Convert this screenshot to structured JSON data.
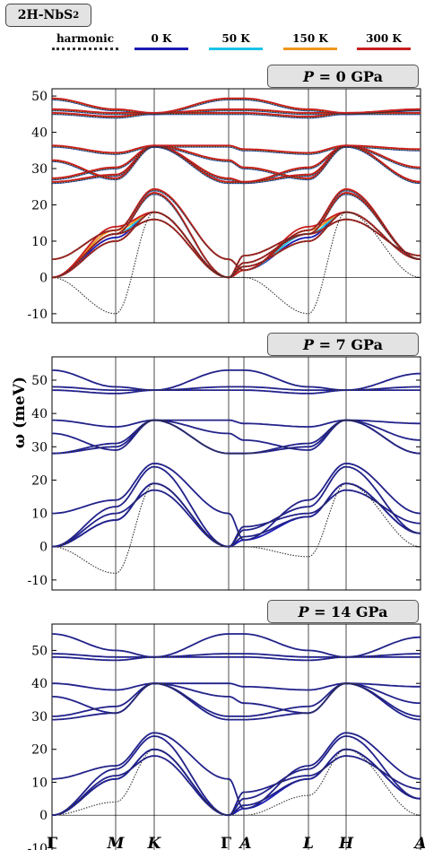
{
  "title": {
    "main": "2H-NbS",
    "sub": "2"
  },
  "legend": [
    {
      "label": "harmonic",
      "color": "#333333",
      "dashed": true
    },
    {
      "label": "0 K",
      "color": "#1a1ab4",
      "dashed": false
    },
    {
      "label": "50 K",
      "color": "#19c3e6",
      "dashed": false
    },
    {
      "label": "150 K",
      "color": "#f0961e",
      "dashed": false
    },
    {
      "label": "300 K",
      "color": "#c81e1e",
      "dashed": false
    }
  ],
  "ylabel": "ω (meV)",
  "xticks": [
    "Γ",
    "M",
    "K",
    "Γ",
    "A",
    "L",
    "H",
    "A"
  ],
  "chart_data": [
    {
      "type": "line",
      "pressure_label": "P = 0 GPa",
      "pressure_var": "P",
      "pressure_val": "= 0 GPa",
      "ylim": [
        -12.5,
        52
      ],
      "yticks": [
        -10,
        0,
        10,
        20,
        30,
        40,
        50
      ],
      "x_points": [
        "Γ",
        "M",
        "K",
        "Γ",
        "A",
        "L",
        "H",
        "A"
      ],
      "series": [
        {
          "name": "harmonic",
          "values": [
            0,
            -10,
            18,
            0,
            0,
            -10,
            18,
            0
          ]
        },
        {
          "name": "0 K",
          "values": [
            0,
            11,
            18,
            0,
            2,
            11,
            18,
            5
          ]
        },
        {
          "name": "50 K",
          "values": [
            0,
            12,
            18,
            0,
            2,
            12,
            18,
            5
          ]
        },
        {
          "name": "150 K",
          "values": [
            0,
            13,
            18,
            0,
            2,
            13,
            18,
            5
          ]
        },
        {
          "name": "300 K",
          "values": [
            0,
            14,
            18,
            0,
            2,
            14,
            18,
            5
          ]
        }
      ]
    },
    {
      "type": "line",
      "pressure_label": "P = 7 GPa",
      "pressure_var": "P",
      "pressure_val": "= 7 GPa",
      "ylim": [
        -13,
        57
      ],
      "yticks": [
        -10,
        0,
        10,
        20,
        30,
        40,
        50
      ],
      "x_points": [
        "Γ",
        "M",
        "K",
        "Γ",
        "A",
        "L",
        "H",
        "A"
      ],
      "series": [
        {
          "name": "harmonic",
          "values": [
            0,
            -8,
            19,
            0,
            0,
            -3,
            19,
            0
          ]
        },
        {
          "name": "0 K",
          "values": [
            0,
            8,
            19,
            0,
            2,
            9,
            19,
            4
          ]
        }
      ]
    },
    {
      "type": "line",
      "pressure_label": "P = 14 GPa",
      "pressure_var": "P",
      "pressure_val": "= 14 GPa",
      "ylim": [
        -13,
        58
      ],
      "yticks": [
        -10,
        0,
        10,
        20,
        30,
        40,
        50
      ],
      "x_points": [
        "Γ",
        "M",
        "K",
        "Γ",
        "A",
        "L",
        "H",
        "A"
      ],
      "series": [
        {
          "name": "harmonic",
          "values": [
            0,
            4,
            20,
            0,
            0,
            6,
            20,
            0
          ]
        },
        {
          "name": "0 K",
          "values": [
            0,
            11,
            20,
            0,
            2,
            11,
            20,
            5
          ]
        }
      ]
    }
  ]
}
